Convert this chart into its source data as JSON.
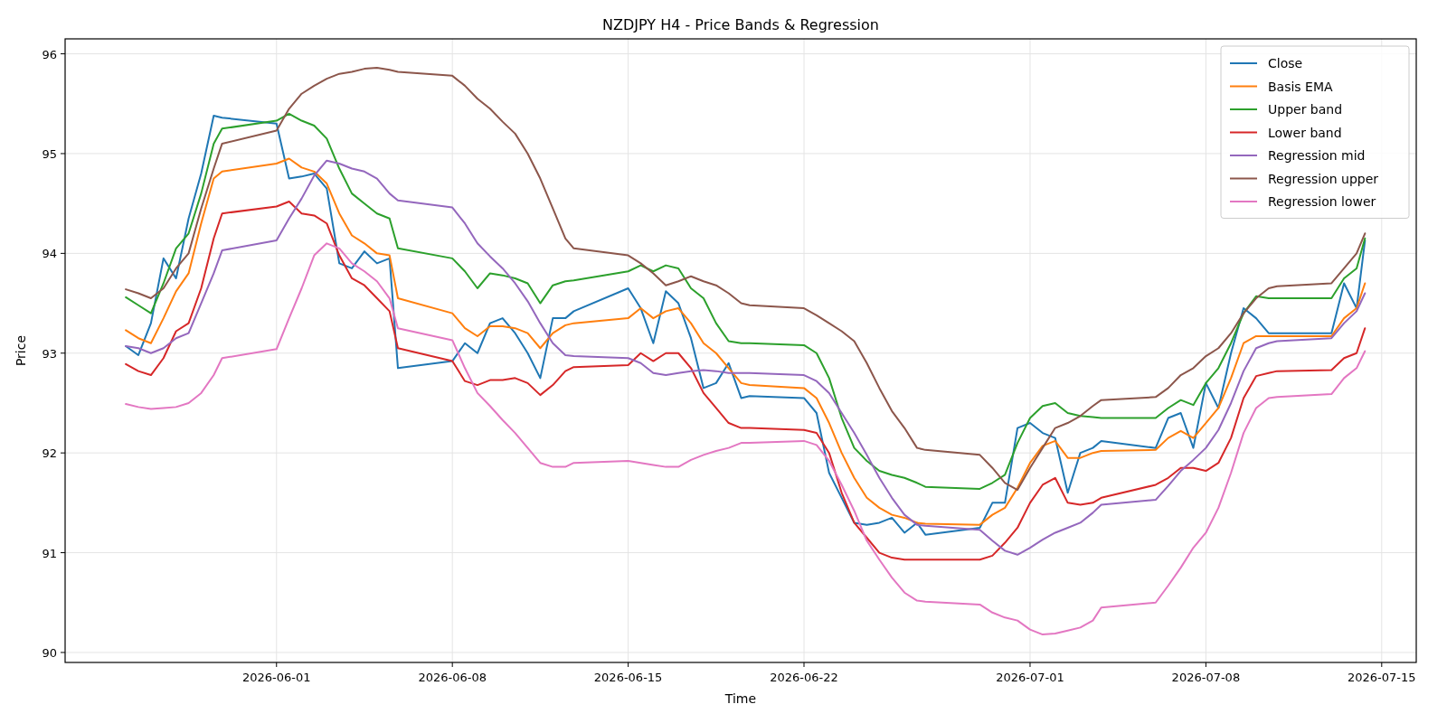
{
  "chart_data": {
    "type": "line",
    "title": "NZDJPY H4 - Price Bands & Regression",
    "xlabel": "Time",
    "ylabel": "Price",
    "x": [
      "2026-05-26T00:00",
      "2026-05-26T12:00",
      "2026-05-27T00:00",
      "2026-05-27T12:00",
      "2026-05-28T00:00",
      "2026-05-28T12:00",
      "2026-05-29T00:00",
      "2026-05-29T12:00",
      "2026-05-29T20:00",
      "2026-06-01T00:00",
      "2026-06-01T12:00",
      "2026-06-02T00:00",
      "2026-06-02T12:00",
      "2026-06-03T00:00",
      "2026-06-03T12:00",
      "2026-06-04T00:00",
      "2026-06-04T12:00",
      "2026-06-05T00:00",
      "2026-06-05T12:00",
      "2026-06-05T20:00",
      "2026-06-08T00:00",
      "2026-06-08T12:00",
      "2026-06-09T00:00",
      "2026-06-09T12:00",
      "2026-06-10T00:00",
      "2026-06-10T12:00",
      "2026-06-11T00:00",
      "2026-06-11T12:00",
      "2026-06-12T00:00",
      "2026-06-12T12:00",
      "2026-06-12T20:00",
      "2026-06-15T00:00",
      "2026-06-15T12:00",
      "2026-06-16T00:00",
      "2026-06-16T12:00",
      "2026-06-17T00:00",
      "2026-06-17T12:00",
      "2026-06-18T00:00",
      "2026-06-18T12:00",
      "2026-06-19T00:00",
      "2026-06-19T12:00",
      "2026-06-19T20:00",
      "2026-06-22T00:00",
      "2026-06-22T12:00",
      "2026-06-23T00:00",
      "2026-06-23T12:00",
      "2026-06-24T00:00",
      "2026-06-24T12:00",
      "2026-06-25T00:00",
      "2026-06-25T12:00",
      "2026-06-26T00:00",
      "2026-06-26T12:00",
      "2026-06-26T20:00",
      "2026-06-29T00:00",
      "2026-06-29T12:00",
      "2026-06-30T00:00",
      "2026-06-30T12:00",
      "2026-07-01T00:00",
      "2026-07-01T12:00",
      "2026-07-02T00:00",
      "2026-07-02T12:00",
      "2026-07-03T00:00",
      "2026-07-03T12:00",
      "2026-07-03T20:00",
      "2026-07-06T00:00",
      "2026-07-06T12:00",
      "2026-07-07T00:00",
      "2026-07-07T12:00",
      "2026-07-08T00:00",
      "2026-07-08T12:00",
      "2026-07-09T00:00",
      "2026-07-09T12:00",
      "2026-07-10T00:00",
      "2026-07-10T12:00",
      "2026-07-10T20:00",
      "2026-07-13T00:00",
      "2026-07-13T12:00",
      "2026-07-14T00:00",
      "2026-07-14T08:00"
    ],
    "series": [
      {
        "name": "Close",
        "color": "#1f77b4",
        "values": [
          93.07,
          92.98,
          93.3,
          93.95,
          93.75,
          94.35,
          94.8,
          95.38,
          95.36,
          95.3,
          94.75,
          94.77,
          94.8,
          94.65,
          93.9,
          93.85,
          94.02,
          93.9,
          93.95,
          92.85,
          92.92,
          93.1,
          93.0,
          93.3,
          93.35,
          93.2,
          93.0,
          92.75,
          93.35,
          93.35,
          93.42,
          93.65,
          93.45,
          93.1,
          93.62,
          93.5,
          93.15,
          92.65,
          92.7,
          92.9,
          92.55,
          92.57,
          92.55,
          92.4,
          91.8,
          91.55,
          91.3,
          91.28,
          91.3,
          91.35,
          91.2,
          91.3,
          91.18,
          91.25,
          91.5,
          91.5,
          92.25,
          92.3,
          92.2,
          92.15,
          91.6,
          92.0,
          92.05,
          92.12,
          92.05,
          92.35,
          92.4,
          92.05,
          92.7,
          92.45,
          93.0,
          93.45,
          93.35,
          93.2,
          93.2,
          93.2,
          93.7,
          93.45,
          94.13
        ]
      },
      {
        "name": "Basis EMA",
        "color": "#ff7f0e",
        "values": [
          93.23,
          93.15,
          93.1,
          93.35,
          93.62,
          93.8,
          94.3,
          94.75,
          94.82,
          94.9,
          94.95,
          94.86,
          94.82,
          94.7,
          94.4,
          94.18,
          94.1,
          94.0,
          93.98,
          93.55,
          93.4,
          93.25,
          93.17,
          93.27,
          93.27,
          93.25,
          93.2,
          93.05,
          93.2,
          93.28,
          93.3,
          93.35,
          93.45,
          93.35,
          93.42,
          93.45,
          93.3,
          93.1,
          93.0,
          92.85,
          92.7,
          92.68,
          92.65,
          92.55,
          92.3,
          92.0,
          91.75,
          91.55,
          91.45,
          91.38,
          91.35,
          91.3,
          91.29,
          91.28,
          91.38,
          91.45,
          91.65,
          91.9,
          92.07,
          92.12,
          91.95,
          91.95,
          92.0,
          92.02,
          92.03,
          92.15,
          92.22,
          92.15,
          92.3,
          92.45,
          92.75,
          93.1,
          93.17,
          93.17,
          93.17,
          93.17,
          93.35,
          93.45,
          93.7
        ]
      },
      {
        "name": "Upper band",
        "color": "#2ca02c",
        "values": [
          93.56,
          93.48,
          93.4,
          93.7,
          94.05,
          94.2,
          94.6,
          95.1,
          95.25,
          95.33,
          95.4,
          95.33,
          95.28,
          95.15,
          94.85,
          94.6,
          94.5,
          94.4,
          94.35,
          94.05,
          93.95,
          93.82,
          93.65,
          93.8,
          93.78,
          93.75,
          93.7,
          93.5,
          93.68,
          93.72,
          93.73,
          93.82,
          93.88,
          93.82,
          93.88,
          93.85,
          93.65,
          93.55,
          93.3,
          93.12,
          93.1,
          93.1,
          93.08,
          93.0,
          92.75,
          92.35,
          92.05,
          91.92,
          91.82,
          91.78,
          91.75,
          91.7,
          91.66,
          91.64,
          91.7,
          91.78,
          92.1,
          92.35,
          92.47,
          92.5,
          92.4,
          92.37,
          92.36,
          92.35,
          92.35,
          92.45,
          92.53,
          92.48,
          92.7,
          92.85,
          93.1,
          93.4,
          93.57,
          93.55,
          93.55,
          93.55,
          93.75,
          93.85,
          94.15
        ]
      },
      {
        "name": "Lower band",
        "color": "#d62728",
        "values": [
          92.89,
          92.82,
          92.78,
          92.95,
          93.22,
          93.3,
          93.65,
          94.15,
          94.4,
          94.47,
          94.52,
          94.4,
          94.38,
          94.3,
          93.98,
          93.75,
          93.68,
          93.55,
          93.42,
          93.05,
          92.92,
          92.72,
          92.68,
          92.73,
          92.73,
          92.75,
          92.7,
          92.58,
          92.68,
          92.82,
          92.86,
          92.88,
          93.0,
          92.92,
          93.0,
          93.0,
          92.85,
          92.6,
          92.45,
          92.3,
          92.25,
          92.25,
          92.23,
          92.2,
          92.0,
          91.6,
          91.3,
          91.15,
          91.0,
          90.95,
          90.93,
          90.93,
          90.93,
          90.93,
          90.97,
          91.1,
          91.25,
          91.5,
          91.68,
          91.75,
          91.5,
          91.48,
          91.5,
          91.55,
          91.68,
          91.75,
          91.85,
          91.85,
          91.82,
          91.9,
          92.15,
          92.55,
          92.77,
          92.8,
          92.82,
          92.83,
          92.95,
          93.0,
          93.25
        ]
      },
      {
        "name": "Regression mid",
        "color": "#9467bd",
        "values": [
          93.07,
          93.05,
          93.0,
          93.05,
          93.15,
          93.2,
          93.5,
          93.8,
          94.03,
          94.13,
          94.35,
          94.55,
          94.78,
          94.93,
          94.9,
          94.85,
          94.82,
          94.75,
          94.6,
          94.53,
          94.46,
          94.3,
          94.1,
          93.97,
          93.85,
          93.7,
          93.52,
          93.3,
          93.1,
          92.98,
          92.97,
          92.95,
          92.9,
          92.8,
          92.78,
          92.8,
          92.82,
          92.83,
          92.82,
          92.8,
          92.8,
          92.8,
          92.78,
          92.72,
          92.6,
          92.4,
          92.2,
          91.98,
          91.75,
          91.55,
          91.38,
          91.28,
          91.27,
          91.23,
          91.12,
          91.02,
          90.98,
          91.05,
          91.13,
          91.2,
          91.25,
          91.3,
          91.4,
          91.48,
          91.53,
          91.67,
          91.82,
          91.93,
          92.05,
          92.23,
          92.5,
          92.82,
          93.05,
          93.1,
          93.12,
          93.15,
          93.3,
          93.42,
          93.6
        ]
      },
      {
        "name": "Regression upper",
        "color": "#8c564b",
        "values": [
          93.64,
          93.6,
          93.55,
          93.65,
          93.85,
          94.0,
          94.45,
          94.85,
          95.1,
          95.23,
          95.45,
          95.6,
          95.68,
          95.75,
          95.8,
          95.82,
          95.85,
          95.86,
          95.84,
          95.82,
          95.78,
          95.68,
          95.55,
          95.45,
          95.32,
          95.2,
          95.0,
          94.75,
          94.45,
          94.15,
          94.05,
          93.98,
          93.9,
          93.8,
          93.68,
          93.72,
          93.77,
          93.72,
          93.68,
          93.6,
          93.5,
          93.48,
          93.45,
          93.38,
          93.3,
          93.22,
          93.12,
          92.9,
          92.65,
          92.42,
          92.25,
          92.05,
          92.03,
          91.98,
          91.85,
          91.7,
          91.63,
          91.85,
          92.05,
          92.25,
          92.3,
          92.37,
          92.47,
          92.53,
          92.56,
          92.65,
          92.78,
          92.85,
          92.97,
          93.05,
          93.2,
          93.4,
          93.55,
          93.65,
          93.67,
          93.7,
          93.85,
          94.0,
          94.2
        ]
      },
      {
        "name": "Regression lower",
        "color": "#e377c2",
        "values": [
          92.49,
          92.46,
          92.44,
          92.45,
          92.46,
          92.5,
          92.6,
          92.78,
          92.95,
          93.04,
          93.35,
          93.65,
          93.98,
          94.1,
          94.05,
          93.9,
          93.82,
          93.72,
          93.55,
          93.25,
          93.13,
          92.85,
          92.6,
          92.47,
          92.33,
          92.2,
          92.05,
          91.9,
          91.86,
          91.86,
          91.9,
          91.92,
          91.9,
          91.88,
          91.86,
          91.86,
          91.93,
          91.98,
          92.02,
          92.05,
          92.1,
          92.1,
          92.12,
          92.08,
          91.92,
          91.68,
          91.42,
          91.12,
          90.93,
          90.75,
          90.6,
          90.52,
          90.51,
          90.48,
          90.4,
          90.35,
          90.32,
          90.23,
          90.18,
          90.19,
          90.22,
          90.25,
          90.32,
          90.45,
          90.5,
          90.67,
          90.85,
          91.05,
          91.2,
          91.45,
          91.8,
          92.2,
          92.45,
          92.55,
          92.56,
          92.59,
          92.75,
          92.85,
          93.02
        ]
      }
    ],
    "xlim": [
      "2026-05-23T14:00",
      "2026-07-16T09:00"
    ],
    "xticks": [
      "2026-06-01",
      "2026-06-08",
      "2026-06-15",
      "2026-06-22",
      "2026-07-01",
      "2026-07-08",
      "2026-07-15"
    ],
    "ylim": [
      89.9,
      96.15
    ],
    "yticks": [
      90,
      91,
      92,
      93,
      94,
      95,
      96
    ],
    "grid": true,
    "legend": "top right",
    "marker": "none",
    "line_style": "solid"
  }
}
